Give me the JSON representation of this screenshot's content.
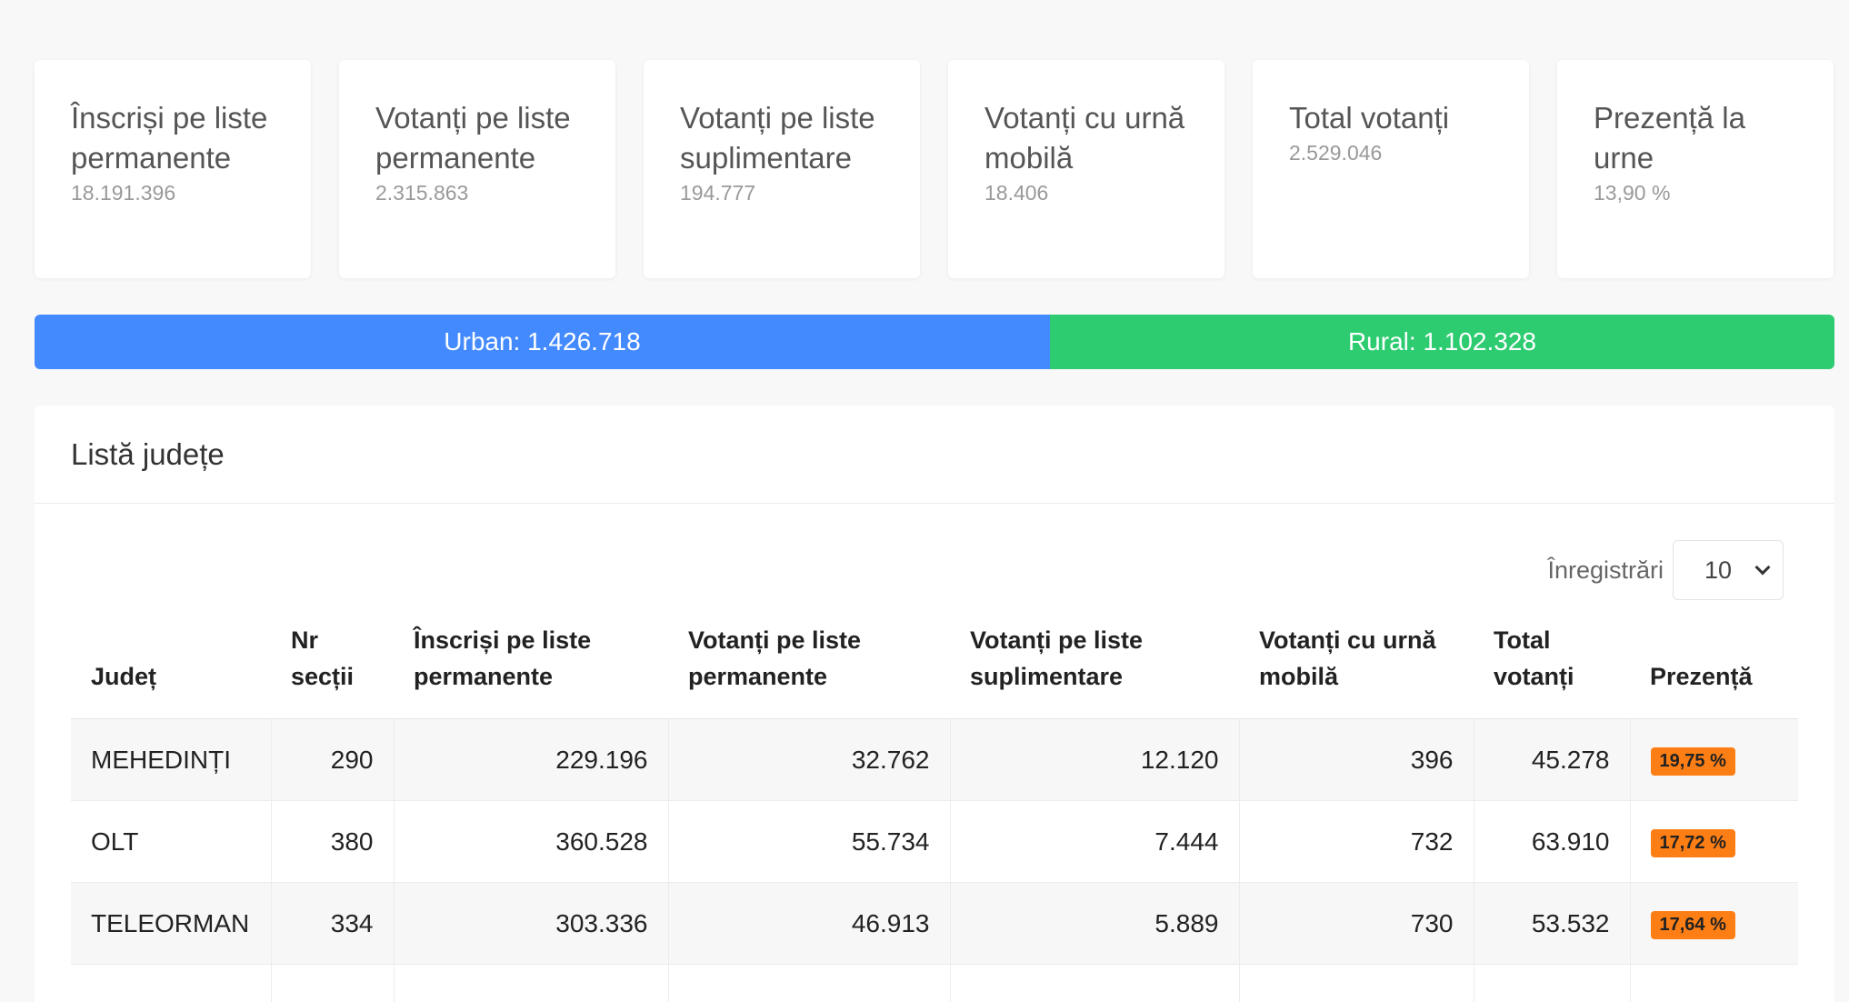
{
  "stats": [
    {
      "label": "Înscriși pe liste permanente",
      "value": "18.191.396"
    },
    {
      "label": "Votanți pe liste permanente",
      "value": "2.315.863"
    },
    {
      "label": "Votanți pe liste suplimentare",
      "value": "194.777"
    },
    {
      "label": "Votanți cu urnă mobilă",
      "value": "18.406"
    },
    {
      "label": "Total votanți",
      "value": "2.529.046"
    },
    {
      "label": "Prezență la urne",
      "value": "13,90 %"
    }
  ],
  "urban_rural": {
    "urban_label": "Urban: 1.426.718",
    "rural_label": "Rural: 1.102.328",
    "urban_value": 1426718,
    "rural_value": 1102328,
    "colors": {
      "urban": "#448aff",
      "rural": "#2ecc71"
    }
  },
  "county_list": {
    "title": "Listă județe",
    "records_label": "Înregistrări",
    "records_value": "10",
    "columns": [
      "Județ",
      "Nr secții",
      "Înscriși pe liste permanente",
      "Votanți pe liste permanente",
      "Votanți pe liste suplimentare",
      "Votanți cu urnă mobilă",
      "Total votanți",
      "Prezență"
    ],
    "rows": [
      {
        "judet": "MEHEDINȚI",
        "sectii": "290",
        "inscrisi": "229.196",
        "permanente": "32.762",
        "suplimentare": "12.120",
        "mobila": "396",
        "total": "45.278",
        "prezenta": "19,75 %"
      },
      {
        "judet": "OLT",
        "sectii": "380",
        "inscrisi": "360.528",
        "permanente": "55.734",
        "suplimentare": "7.444",
        "mobila": "732",
        "total": "63.910",
        "prezenta": "17,72 %"
      },
      {
        "judet": "TELEORMAN",
        "sectii": "334",
        "inscrisi": "303.336",
        "permanente": "46.913",
        "suplimentare": "5.889",
        "mobila": "730",
        "total": "53.532",
        "prezenta": "17,64 %"
      }
    ],
    "badge_color": "#fd7e14"
  }
}
